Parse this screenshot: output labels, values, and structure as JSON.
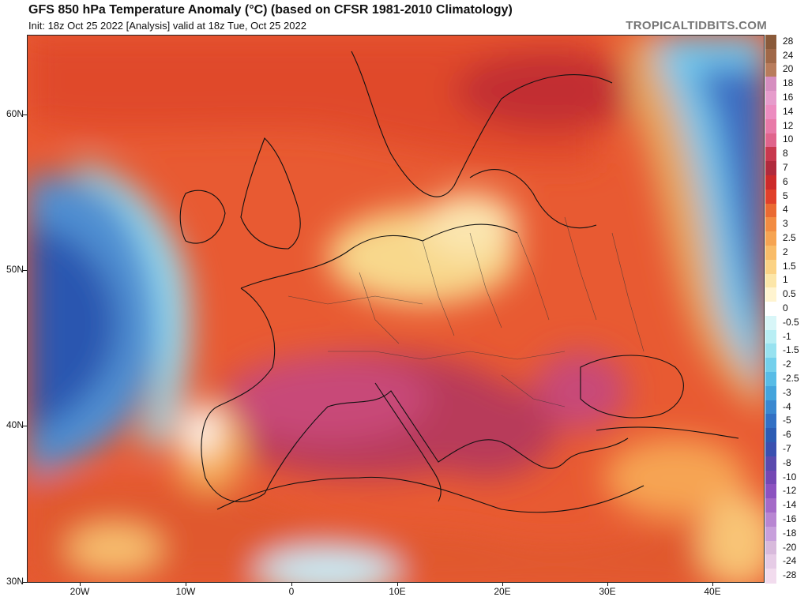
{
  "header": {
    "title": "GFS 850 hPa Temperature Anomaly (°C) (based on CFSR 1981-2010 Climatology)",
    "subtitle": "Init: 18z Oct 25 2022  [Analysis]   valid at 18z Tue, Oct 25 2022",
    "site": "TROPICALTIDBITS.COM"
  },
  "axes": {
    "lat_labels": [
      "60N",
      "50N",
      "40N",
      "30N"
    ],
    "lon_labels": [
      "20W",
      "10W",
      "0",
      "10E",
      "20E",
      "30E",
      "40E"
    ]
  },
  "colorbar": {
    "labels": [
      "28",
      "24",
      "20",
      "18",
      "16",
      "14",
      "12",
      "10",
      "8",
      "7",
      "6",
      "5",
      "4",
      "3",
      "2.5",
      "2",
      "1.5",
      "1",
      "0.5",
      "0",
      "-0.5",
      "-1",
      "-1.5",
      "-2",
      "-2.5",
      "-3",
      "-4",
      "-5",
      "-6",
      "-7",
      "-8",
      "-10",
      "-12",
      "-14",
      "-16",
      "-18",
      "-20",
      "-24",
      "-28"
    ],
    "colors": [
      "#8a5a3a",
      "#a06848",
      "#b87c5c",
      "#d68ec0",
      "#e69ccc",
      "#ec8cc0",
      "#e87aa8",
      "#e0648c",
      "#c8384e",
      "#b02a3c",
      "#cc2a2a",
      "#e0402a",
      "#ea6a32",
      "#f28c42",
      "#f6a452",
      "#f9bc68",
      "#fbd284",
      "#fce6a8",
      "#fff4d0",
      "#ffffff",
      "#d8f6f8",
      "#b8eef4",
      "#98e2f0",
      "#74d0ec",
      "#58bce6",
      "#44a4dc",
      "#3a88d0",
      "#3270c4",
      "#2c5cb4",
      "#3a50b0",
      "#5a4aae",
      "#7448b4",
      "#8c52c0",
      "#a46ac8",
      "#b886d2",
      "#c8a0dc",
      "#d8badc",
      "#e6cce6",
      "#f2dcee"
    ]
  },
  "map": {
    "region": "Europe / North Africa",
    "field": "850 hPa temperature anomaly"
  }
}
